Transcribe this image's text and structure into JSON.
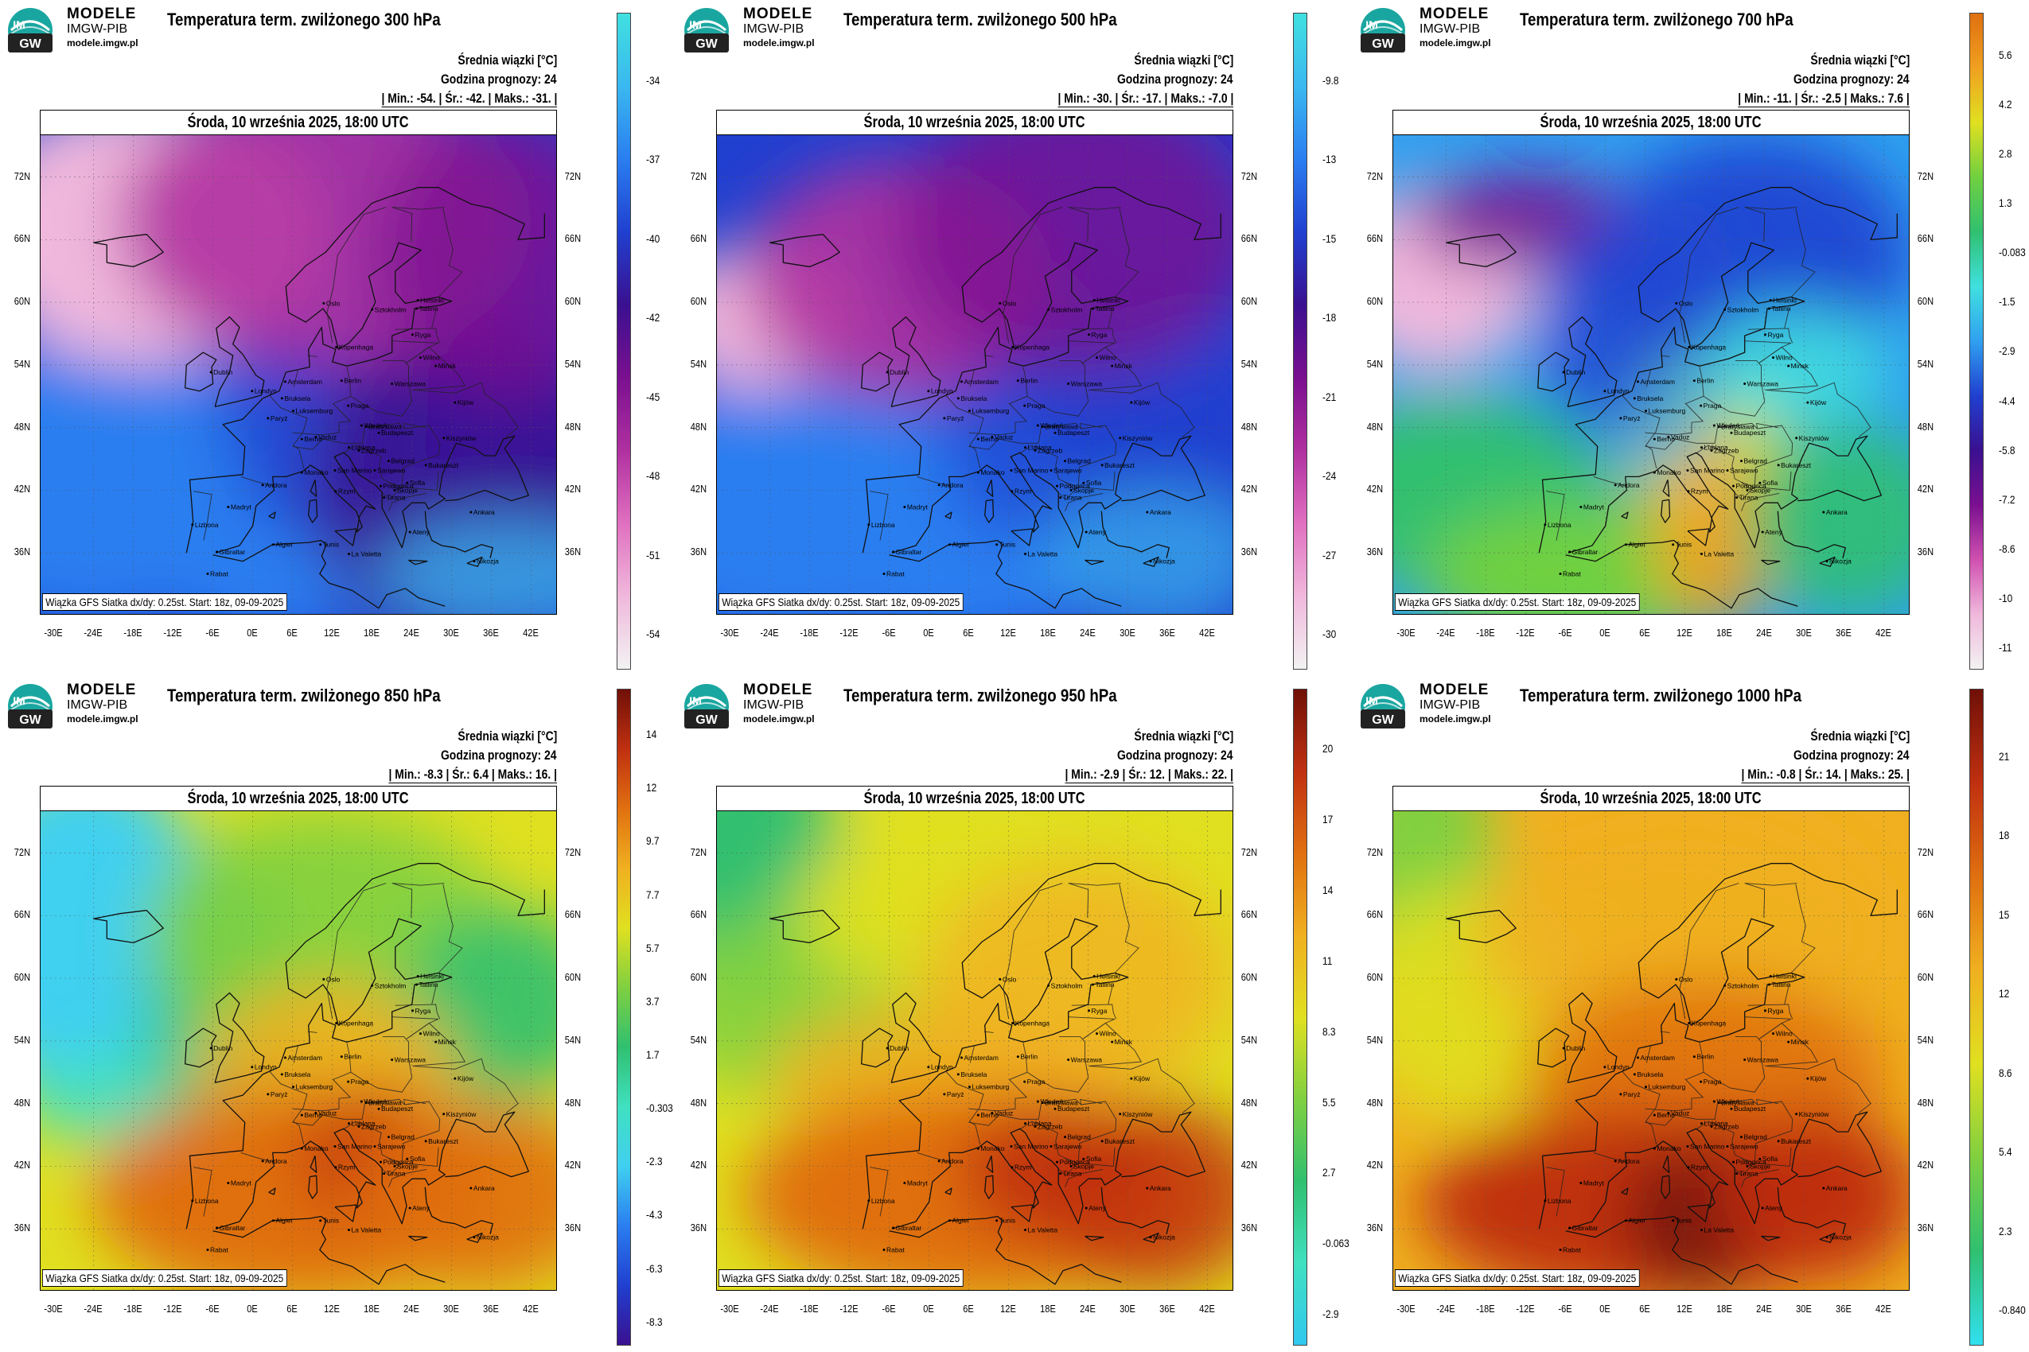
{
  "panels": [
    {
      "brand": {
        "name": "MODELE",
        "org": "IMGW-PIB",
        "site": "modele.imgw.pl"
      },
      "title": "Temperatura term. zwilżonego 300 hPa",
      "mean_label": "Średnia wiązki [°C]",
      "forecast_hour": "Godzina prognozy: 24",
      "stats": "| Min.: -54. | Śr.: -42. | Maks.: -31. |",
      "date": "Środa, 10 września 2025, 18:00 UTC",
      "footer": "Wiązka GFS Siatka dx/dy: 0.25st. Start: 18z, 09-09-2025",
      "colorbar_ticks": [
        "-34",
        "-37",
        "-40",
        "-42",
        "-45",
        "-48",
        "-51",
        "-54"
      ],
      "palette": [
        "#f2f2f2",
        "#f0b8dc",
        "#e070c0",
        "#b030a0",
        "#7a1090",
        "#3a1090",
        "#2040d0",
        "#2a7ef0",
        "#3ab8f0",
        "#40e0e0"
      ],
      "pattern": "p300"
    },
    {
      "brand": {
        "name": "MODELE",
        "org": "IMGW-PIB",
        "site": "modele.imgw.pl"
      },
      "title": "Temperatura term. zwilżonego 500 hPa",
      "mean_label": "Średnia wiązki [°C]",
      "forecast_hour": "Godzina prognozy: 24",
      "stats": "| Min.: -30. | Śr.: -17. | Maks.: -7.0 |",
      "date": "Środa, 10 września 2025, 18:00 UTC",
      "footer": "Wiązka GFS Siatka dx/dy: 0.25st. Start: 18z, 09-09-2025",
      "colorbar_ticks": [
        "-9.8",
        "-13",
        "-15",
        "-18",
        "-21",
        "-24",
        "-27",
        "-30"
      ],
      "palette": [
        "#f2f2f2",
        "#f0b8dc",
        "#e070c0",
        "#b030a0",
        "#7a1090",
        "#3a1090",
        "#2040d0",
        "#2a7ef0",
        "#3ab8f0",
        "#40e0e0"
      ],
      "pattern": "p500"
    },
    {
      "brand": {
        "name": "MODELE",
        "org": "IMGW-PIB",
        "site": "modele.imgw.pl"
      },
      "title": "Temperatura term. zwilżonego 700 hPa",
      "mean_label": "Średnia wiązki [°C]",
      "forecast_hour": "Godzina prognozy: 24",
      "stats": "| Min.: -11. | Śr.: -2.5 | Maks.: 7.6 |",
      "date": "Środa, 10 września 2025, 18:00 UTC",
      "footer": "Wiązka GFS Siatka dx/dy: 0.25st. Start: 18z, 09-09-2025",
      "colorbar_ticks": [
        "5.6",
        "4.2",
        "2.8",
        "1.3",
        "-0.083",
        "-1.5",
        "-2.9",
        "-4.4",
        "-5.8",
        "-7.2",
        "-8.6",
        "-10",
        "-11"
      ],
      "palette": [
        "#f2f2f2",
        "#f0b8dc",
        "#d050b0",
        "#7a1090",
        "#3a1090",
        "#2040d0",
        "#30a0f0",
        "#40e0e0",
        "#30c070",
        "#70d040",
        "#e0e020",
        "#f0a020",
        "#e07010"
      ],
      "pattern": "p700"
    },
    {
      "brand": {
        "name": "MODELE",
        "org": "IMGW-PIB",
        "site": "modele.imgw.pl"
      },
      "title": "Temperatura term. zwilżonego 850 hPa",
      "mean_label": "Średnia wiązki [°C]",
      "forecast_hour": "Godzina prognozy: 24",
      "stats": "| Min.: -8.3 | Śr.: 6.4 | Maks.: 16. |",
      "date": "Środa, 10 września 2025, 18:00 UTC",
      "footer": "Wiązka GFS Siatka dx/dy: 0.25st. Start: 18z, 09-09-2025",
      "colorbar_ticks": [
        "14",
        "12",
        "9.7",
        "7.7",
        "5.7",
        "3.7",
        "1.7",
        "-0.303",
        "-2.3",
        "-4.3",
        "-6.3",
        "-8.3"
      ],
      "palette": [
        "#3a1090",
        "#2040d0",
        "#2a7ef0",
        "#40d0f0",
        "#40e0c0",
        "#30c070",
        "#80d040",
        "#e0e020",
        "#f0b020",
        "#e07010",
        "#c03010",
        "#701008"
      ],
      "pattern": "p850"
    },
    {
      "brand": {
        "name": "MODELE",
        "org": "IMGW-PIB",
        "site": "modele.imgw.pl"
      },
      "title": "Temperatura term. zwilżonego 950 hPa",
      "mean_label": "Średnia wiązki [°C]",
      "forecast_hour": "Godzina prognozy: 24",
      "stats": "| Min.: -2.9 | Śr.: 12. | Maks.: 22. |",
      "date": "Środa, 10 września 2025, 18:00 UTC",
      "footer": "Wiązka GFS Siatka dx/dy: 0.25st. Start: 18z, 09-09-2025",
      "colorbar_ticks": [
        "20",
        "17",
        "14",
        "11",
        "8.3",
        "5.5",
        "2.7",
        "-0.063",
        "-2.9"
      ],
      "palette": [
        "#30c8f0",
        "#40e0c0",
        "#30c070",
        "#80d040",
        "#e0e020",
        "#f0b020",
        "#e07010",
        "#c03010",
        "#701008"
      ],
      "pattern": "p950"
    },
    {
      "brand": {
        "name": "MODELE",
        "org": "IMGW-PIB",
        "site": "modele.imgw.pl"
      },
      "title": "Temperatura term. zwilżonego 1000 hPa",
      "mean_label": "Średnia wiązki [°C]",
      "forecast_hour": "Godzina prognozy: 24",
      "stats": "| Min.: -0.8 | Śr.: 14. | Maks.: 25. |",
      "date": "Środa, 10 września 2025, 18:00 UTC",
      "footer": "Wiązka GFS Siatka dx/dy: 0.25st. Start: 18z, 09-09-2025",
      "colorbar_ticks": [
        "21",
        "18",
        "15",
        "12",
        "8.6",
        "5.4",
        "2.3",
        "-0.840"
      ],
      "palette": [
        "#30e0f0",
        "#30c070",
        "#80d040",
        "#e0e020",
        "#f0b020",
        "#e07010",
        "#c03010",
        "#701008"
      ],
      "pattern": "p1000"
    }
  ],
  "lat_labels_left": [
    "72N",
    "66N",
    "60N",
    "54N",
    "48N",
    "42N",
    "36N"
  ],
  "lat_labels_right": [
    "72N",
    "66N",
    "60N",
    "54N",
    "48N",
    "42N",
    "36N"
  ],
  "lon_labels": [
    "-30E",
    "-24E",
    "-18E",
    "-12E",
    "-6E",
    "0E",
    "6E",
    "12E",
    "18E",
    "24E",
    "30E",
    "36E",
    "42E"
  ],
  "cities": [
    {
      "name": "Oslo",
      "lon": 10.7,
      "lat": 59.9
    },
    {
      "name": "Sztokholm",
      "lon": 18.0,
      "lat": 59.3
    },
    {
      "name": "Helsinki",
      "lon": 24.9,
      "lat": 60.2
    },
    {
      "name": "Tallinn",
      "lon": 24.7,
      "lat": 59.4
    },
    {
      "name": "Kopenhaga",
      "lon": 12.6,
      "lat": 55.7
    },
    {
      "name": "Ryga",
      "lon": 24.1,
      "lat": 56.9
    },
    {
      "name": "Wilno",
      "lon": 25.3,
      "lat": 54.7
    },
    {
      "name": "Mińsk",
      "lon": 27.6,
      "lat": 53.9
    },
    {
      "name": "Dublin",
      "lon": -6.3,
      "lat": 53.3
    },
    {
      "name": "Londyn",
      "lon": -0.1,
      "lat": 51.5
    },
    {
      "name": "Amsterdam",
      "lon": 4.9,
      "lat": 52.4
    },
    {
      "name": "Berlin",
      "lon": 13.4,
      "lat": 52.5
    },
    {
      "name": "Warszawa",
      "lon": 21.0,
      "lat": 52.2
    },
    {
      "name": "Bruksela",
      "lon": 4.4,
      "lat": 50.8
    },
    {
      "name": "Paryż",
      "lon": 2.3,
      "lat": 48.9
    },
    {
      "name": "Luksemburg",
      "lon": 6.1,
      "lat": 49.6
    },
    {
      "name": "Praga",
      "lon": 14.4,
      "lat": 50.1
    },
    {
      "name": "Kijów",
      "lon": 30.5,
      "lat": 50.4
    },
    {
      "name": "Wiedeń",
      "lon": 16.4,
      "lat": 48.2
    },
    {
      "name": "Bratysława",
      "lon": 17.1,
      "lat": 48.1
    },
    {
      "name": "Budapeszt",
      "lon": 19.0,
      "lat": 47.5
    },
    {
      "name": "Kiszyniów",
      "lon": 28.8,
      "lat": 47.0
    },
    {
      "name": "Berno",
      "lon": 7.4,
      "lat": 46.9
    },
    {
      "name": "Vaduz",
      "lon": 9.5,
      "lat": 47.1
    },
    {
      "name": "Lublana",
      "lon": 14.5,
      "lat": 46.1
    },
    {
      "name": "Zagrzeb",
      "lon": 16.0,
      "lat": 45.8
    },
    {
      "name": "Belgrad",
      "lon": 20.5,
      "lat": 44.8
    },
    {
      "name": "Bukareszt",
      "lon": 26.1,
      "lat": 44.4
    },
    {
      "name": "San Marino",
      "lon": 12.4,
      "lat": 43.9
    },
    {
      "name": "Sarajewo",
      "lon": 18.4,
      "lat": 43.9
    },
    {
      "name": "Sofia",
      "lon": 23.3,
      "lat": 42.7
    },
    {
      "name": "Podgorica",
      "lon": 19.3,
      "lat": 42.4
    },
    {
      "name": "Skopje",
      "lon": 21.4,
      "lat": 42.0
    },
    {
      "name": "Andora",
      "lon": 1.5,
      "lat": 42.5
    },
    {
      "name": "Monako",
      "lon": 7.4,
      "lat": 43.7
    },
    {
      "name": "Rzym",
      "lon": 12.5,
      "lat": 41.9
    },
    {
      "name": "Tirana",
      "lon": 19.8,
      "lat": 41.3
    },
    {
      "name": "Madryt",
      "lon": -3.7,
      "lat": 40.4
    },
    {
      "name": "Ankara",
      "lon": 32.9,
      "lat": 39.9
    },
    {
      "name": "Lizbona",
      "lon": -9.1,
      "lat": 38.7
    },
    {
      "name": "Ateny",
      "lon": 23.7,
      "lat": 38.0
    },
    {
      "name": "Algier",
      "lon": 3.1,
      "lat": 36.8
    },
    {
      "name": "Tunis",
      "lon": 10.2,
      "lat": 36.8
    },
    {
      "name": "Gibraltar",
      "lon": -5.4,
      "lat": 36.1
    },
    {
      "name": "La Valetta",
      "lon": 14.5,
      "lat": 35.9
    },
    {
      "name": "Nikozja",
      "lon": 33.4,
      "lat": 35.2
    },
    {
      "name": "Rabat",
      "lon": -6.8,
      "lat": 34.0
    }
  ]
}
